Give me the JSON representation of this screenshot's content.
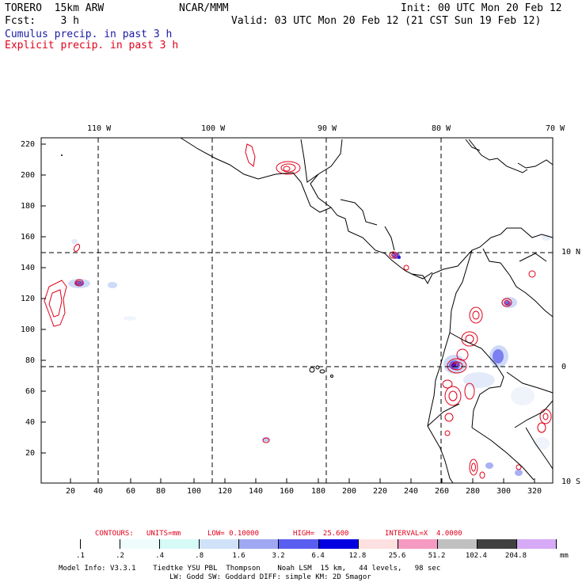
{
  "header": {
    "model": "TORERO  15km ARW",
    "org": "NCAR/MMM",
    "init": "Init: 00 UTC Mon 20 Feb 12",
    "fcst": "Fcst:    3 h",
    "valid": "Valid: 03 UTC Mon 20 Feb 12 (21 CST Sun 19 Feb 12)",
    "field_cumulus": "Cumulus precip. in past 3 h",
    "field_explicit": "Explicit precip. in past 3 h",
    "color_cumulus": "#1a1aa6",
    "color_explicit": "#e0001a"
  },
  "map": {
    "lon_labels": [
      "110 W",
      "100 W",
      "90 W",
      "80 W",
      "70 W"
    ],
    "lat_labels": [
      "10 N",
      "0",
      "10 S"
    ],
    "y_ticks": [
      "220",
      "200",
      "180",
      "160",
      "140",
      "120",
      "100",
      "80",
      "60",
      "40",
      "20"
    ],
    "x_ticks": [
      "20",
      "40",
      "60",
      "80",
      "100",
      "120",
      "140",
      "160",
      "180",
      "200",
      "220",
      "240",
      "260",
      "280",
      "300",
      "320"
    ]
  },
  "contours": {
    "label": "CONTOURS:",
    "units": "UNITS=mm",
    "low": "LOW= 0.10000",
    "high": "HIGH=  25.600",
    "interval": "INTERVAL=X  4.0000"
  },
  "colorbar": {
    "unit": "mm",
    "labels": [
      ".1",
      ".2",
      ".4",
      ".8",
      "1.6",
      "3.2",
      "6.4",
      "12.8",
      "25.6",
      "51.2",
      "102.4",
      "204.8"
    ],
    "colors": [
      "#ffffff",
      "#ffffff",
      "#eefcfc",
      "#d6faf7",
      "#cfe2f8",
      "#9fa8f2",
      "#5a5ef0",
      "#0000e0",
      "#fde0e0",
      "#f59ac0",
      "#c0c0c0",
      "#404040",
      "#d6aaf6"
    ]
  },
  "footer": {
    "line1": "Model Info: V3.3.1    Tiedtke YSU PBL  Thompson    Noah LSM  15 km,   44 levels,   98 sec",
    "line2": "LW: Godd SW: Goddard DIFF: simple KM: 2D Smagor"
  }
}
